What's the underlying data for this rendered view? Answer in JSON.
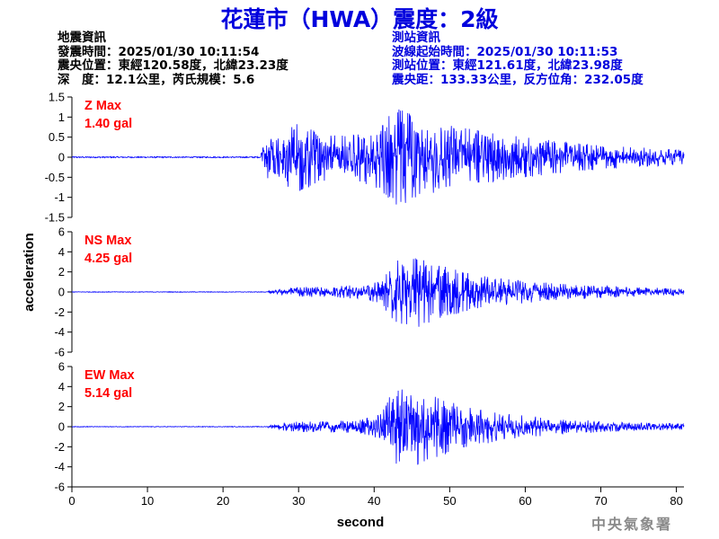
{
  "title": "花蓮市（HWA）震度：2級",
  "quake_info": {
    "header": "地震資訊",
    "origin_time": "發震時間：2025/01/30 10:11:54",
    "epicenter": "震央位置：東經120.58度，北緯23.23度",
    "depth_magnitude": "深　度：12.1公里，芮氏規模：5.6"
  },
  "station_info": {
    "header": "測站資訊",
    "arrival_time": "波線起始時間：2025/01/30 10:11:53",
    "location": "測站位置：東經121.61度，北緯23.98度",
    "distance": "震央距：133.33公里，反方位角：232.05度"
  },
  "watermark": "中央氣象署",
  "colors": {
    "title": "#0000dd",
    "trace": "#0000ff",
    "max_label": "#ff0000",
    "axis": "#000000"
  },
  "chart_data": {
    "type": "line",
    "xlabel": "second",
    "ylabel": "acceleration",
    "xlim": [
      0,
      81
    ],
    "xticks": [
      0,
      10,
      20,
      30,
      40,
      50,
      60,
      70,
      80
    ],
    "grid": false,
    "panels": [
      {
        "component": "Z",
        "max_label": "Z Max",
        "max_value": "1.40 gal",
        "ylim": [
          -1.5,
          1.5
        ],
        "yticks": [
          -1.5,
          -1,
          -0.5,
          0,
          0.5,
          1,
          1.5
        ],
        "ytick_labels": [
          "-1.5",
          "-1",
          "-0.5",
          "0",
          "0.5",
          "1",
          "1.5"
        ],
        "noise_level": 0.015,
        "p_onset": 25.0,
        "envelope": [
          [
            25,
            0.15
          ],
          [
            26,
            0.6
          ],
          [
            27,
            0.7
          ],
          [
            29,
            0.8
          ],
          [
            30,
            0.9
          ],
          [
            32,
            0.7
          ],
          [
            35,
            0.55
          ],
          [
            38,
            0.6
          ],
          [
            41,
            0.85
          ],
          [
            42,
            1.05
          ],
          [
            43,
            1.25
          ],
          [
            44,
            1.15
          ],
          [
            45,
            1.1
          ],
          [
            47,
            1.0
          ],
          [
            50,
            0.85
          ],
          [
            53,
            0.7
          ],
          [
            56,
            0.6
          ],
          [
            60,
            0.5
          ],
          [
            65,
            0.4
          ],
          [
            70,
            0.3
          ],
          [
            75,
            0.25
          ],
          [
            81,
            0.18
          ]
        ]
      },
      {
        "component": "NS",
        "max_label": "NS Max",
        "max_value": "4.25 gal",
        "ylim": [
          -6,
          6
        ],
        "yticks": [
          -6,
          -4,
          -2,
          0,
          2,
          4,
          6
        ],
        "ytick_labels": [
          "-6",
          "-4",
          "-2",
          "0",
          "2",
          "4",
          "6"
        ],
        "noise_level": 0.03,
        "p_onset": 26.0,
        "envelope": [
          [
            26,
            0.1
          ],
          [
            28,
            0.35
          ],
          [
            30,
            0.5
          ],
          [
            34,
            0.55
          ],
          [
            38,
            0.7
          ],
          [
            41,
            1.2
          ],
          [
            42,
            2.4
          ],
          [
            43,
            3.2
          ],
          [
            44,
            3.6
          ],
          [
            45,
            3.4
          ],
          [
            46,
            3.6
          ],
          [
            48,
            2.8
          ],
          [
            50,
            2.4
          ],
          [
            53,
            1.8
          ],
          [
            56,
            1.5
          ],
          [
            60,
            1.1
          ],
          [
            65,
            0.8
          ],
          [
            70,
            0.6
          ],
          [
            75,
            0.45
          ],
          [
            81,
            0.35
          ]
        ]
      },
      {
        "component": "EW",
        "max_label": "EW Max",
        "max_value": "5.14 gal",
        "ylim": [
          -6,
          6
        ],
        "yticks": [
          -6,
          -4,
          -2,
          0,
          2,
          4,
          6
        ],
        "ytick_labels": [
          "-6",
          "-4",
          "-2",
          "0",
          "2",
          "4",
          "6"
        ],
        "noise_level": 0.03,
        "p_onset": 26.0,
        "envelope": [
          [
            26,
            0.1
          ],
          [
            28,
            0.4
          ],
          [
            30,
            0.55
          ],
          [
            34,
            0.55
          ],
          [
            38,
            0.7
          ],
          [
            41,
            1.3
          ],
          [
            42,
            3.0
          ],
          [
            43,
            3.8
          ],
          [
            44,
            4.2
          ],
          [
            45,
            4.6
          ],
          [
            46,
            3.8
          ],
          [
            48,
            3.2
          ],
          [
            50,
            2.6
          ],
          [
            53,
            2.0
          ],
          [
            56,
            1.5
          ],
          [
            60,
            1.1
          ],
          [
            65,
            0.8
          ],
          [
            70,
            0.55
          ],
          [
            75,
            0.4
          ],
          [
            81,
            0.3
          ]
        ]
      }
    ]
  }
}
